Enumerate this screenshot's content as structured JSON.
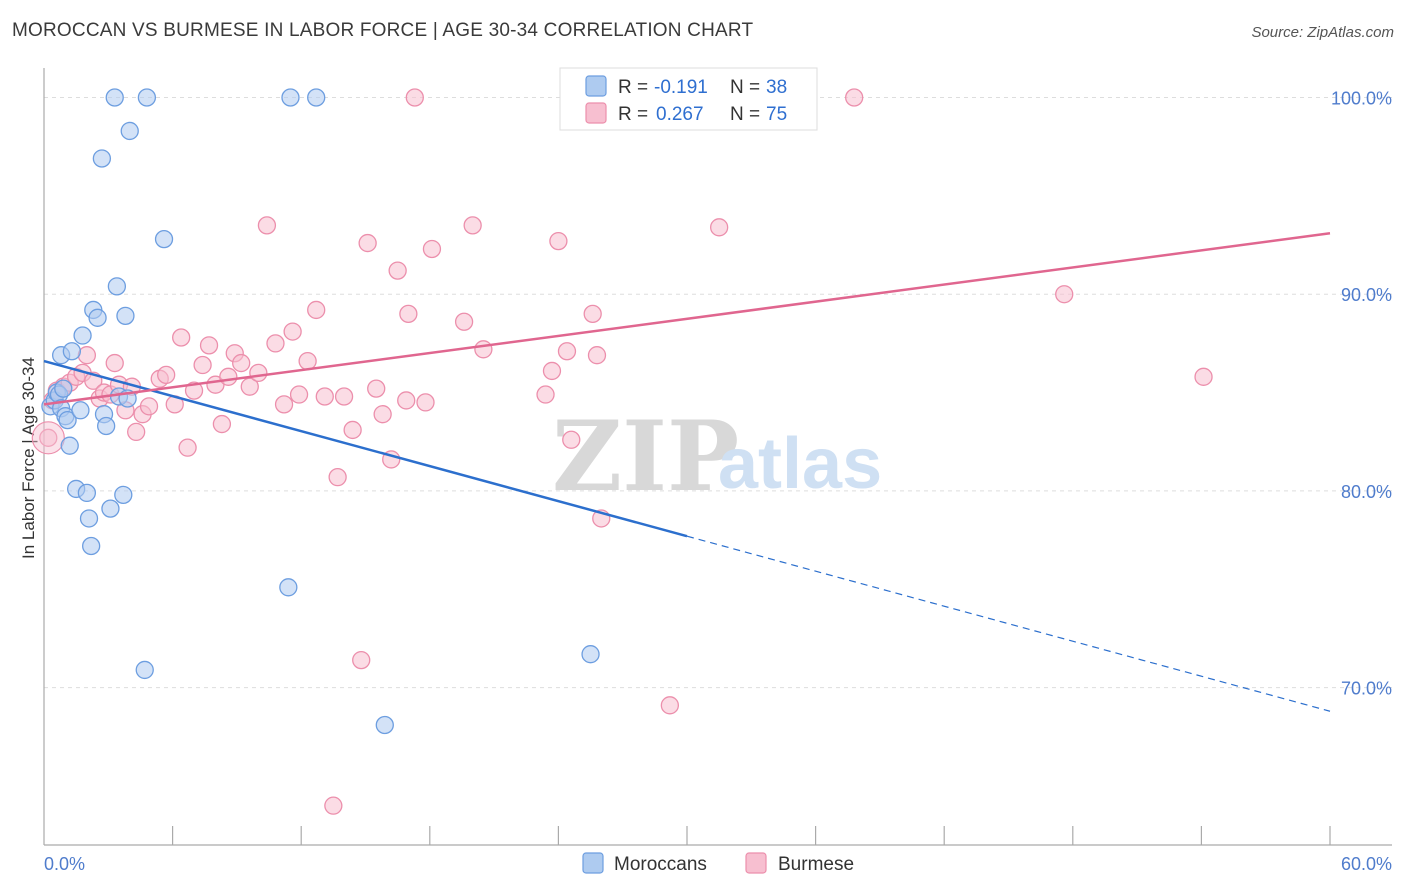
{
  "title": "MOROCCAN VS BURMESE IN LABOR FORCE | AGE 30-34 CORRELATION CHART",
  "source": "Source: ZipAtlas.com",
  "watermark": {
    "zip": "ZIP",
    "atlas": "atlas"
  },
  "colors": {
    "moroccan_fill": "#aecbf0",
    "moroccan_stroke": "#6d9ee0",
    "moroccan_line": "#2c6fcd",
    "burmese_fill": "#f7bfd0",
    "burmese_stroke": "#ec8fac",
    "burmese_line": "#e0668f",
    "axis_text": "#4f7ccc",
    "grid": "#dddddd"
  },
  "legend": {
    "rows": [
      {
        "r_label": "R =",
        "r_value": "-0.191",
        "n_label": "N =",
        "n_value": "38"
      },
      {
        "r_label": "R =",
        "r_value": "0.267",
        "n_label": "N =",
        "n_value": "75"
      }
    ],
    "bottom": [
      "Moroccans",
      "Burmese"
    ]
  },
  "chart_data": {
    "type": "scatter",
    "title": "MOROCCAN VS BURMESE IN LABOR FORCE | AGE 30-34 CORRELATION CHART",
    "xlabel": "",
    "ylabel": "In Labor Force | Age 30-34",
    "xlim": [
      0,
      60
    ],
    "ylim": [
      62.0,
      101.5
    ],
    "x_tick_labels": [
      "0.0%",
      "60.0%"
    ],
    "y_ticks": [
      70,
      80,
      90,
      100
    ],
    "y_tick_labels": [
      "70.0%",
      "80.0%",
      "90.0%",
      "100.0%"
    ],
    "series": [
      {
        "name": "Moroccans",
        "r": -0.191,
        "n": 38,
        "trend": {
          "x_start": 0,
          "y_start": 86.6,
          "x_solid_end": 30,
          "y_solid_end": 77.7,
          "x_end": 60,
          "y_end": 68.8
        },
        "points": [
          [
            0.3,
            84.3
          ],
          [
            0.5,
            84.6
          ],
          [
            0.6,
            85.0
          ],
          [
            0.7,
            84.9
          ],
          [
            0.8,
            84.2
          ],
          [
            0.9,
            85.2
          ],
          [
            0.8,
            86.9
          ],
          [
            1.0,
            83.8
          ],
          [
            1.1,
            83.6
          ],
          [
            1.2,
            82.3
          ],
          [
            1.3,
            87.1
          ],
          [
            1.5,
            80.1
          ],
          [
            1.7,
            84.1
          ],
          [
            1.8,
            87.9
          ],
          [
            2.0,
            79.9
          ],
          [
            2.1,
            78.6
          ],
          [
            2.2,
            77.2
          ],
          [
            2.3,
            89.2
          ],
          [
            2.5,
            88.8
          ],
          [
            2.7,
            96.9
          ],
          [
            2.8,
            83.9
          ],
          [
            2.9,
            83.3
          ],
          [
            3.1,
            79.1
          ],
          [
            3.3,
            100.0
          ],
          [
            3.4,
            90.4
          ],
          [
            3.5,
            84.8
          ],
          [
            3.7,
            79.8
          ],
          [
            3.8,
            88.9
          ],
          [
            3.9,
            84.7
          ],
          [
            4.0,
            98.3
          ],
          [
            4.7,
            70.9
          ],
          [
            4.8,
            100.0
          ],
          [
            5.6,
            92.8
          ],
          [
            11.4,
            75.1
          ],
          [
            11.5,
            100.0
          ],
          [
            12.7,
            100.0
          ],
          [
            15.9,
            68.1
          ],
          [
            25.5,
            71.7
          ]
        ]
      },
      {
        "name": "Burmese",
        "r": 0.267,
        "n": 75,
        "trend": {
          "x_start": 0,
          "y_start": 84.4,
          "x_end": 60,
          "y_end": 93.1
        },
        "points": [
          [
            0.2,
            82.7
          ],
          [
            0.6,
            85.1
          ],
          [
            0.9,
            85.3
          ],
          [
            1.2,
            85.5
          ],
          [
            1.5,
            85.8
          ],
          [
            1.8,
            86.0
          ],
          [
            2.0,
            86.9
          ],
          [
            2.3,
            85.6
          ],
          [
            2.6,
            84.7
          ],
          [
            2.8,
            85.0
          ],
          [
            3.1,
            84.9
          ],
          [
            3.3,
            86.5
          ],
          [
            3.5,
            85.4
          ],
          [
            3.8,
            84.1
          ],
          [
            4.1,
            85.3
          ],
          [
            4.3,
            83.0
          ],
          [
            4.6,
            83.9
          ],
          [
            4.9,
            84.3
          ],
          [
            5.4,
            85.7
          ],
          [
            5.7,
            85.9
          ],
          [
            6.1,
            84.4
          ],
          [
            6.4,
            87.8
          ],
          [
            6.7,
            82.2
          ],
          [
            7.0,
            85.1
          ],
          [
            7.4,
            86.4
          ],
          [
            7.7,
            87.4
          ],
          [
            8.0,
            85.4
          ],
          [
            8.3,
            83.4
          ],
          [
            8.6,
            85.8
          ],
          [
            8.9,
            87.0
          ],
          [
            9.2,
            86.5
          ],
          [
            9.6,
            85.3
          ],
          [
            10.0,
            86.0
          ],
          [
            10.4,
            93.5
          ],
          [
            10.8,
            87.5
          ],
          [
            11.2,
            84.4
          ],
          [
            11.6,
            88.1
          ],
          [
            11.9,
            84.9
          ],
          [
            12.3,
            86.6
          ],
          [
            12.7,
            89.2
          ],
          [
            13.1,
            84.8
          ],
          [
            13.5,
            64.0
          ],
          [
            13.7,
            80.7
          ],
          [
            14.0,
            84.8
          ],
          [
            14.4,
            83.1
          ],
          [
            14.8,
            71.4
          ],
          [
            15.1,
            92.6
          ],
          [
            15.5,
            85.2
          ],
          [
            15.8,
            83.9
          ],
          [
            16.2,
            81.6
          ],
          [
            16.5,
            91.2
          ],
          [
            16.9,
            84.6
          ],
          [
            17.3,
            100.0
          ],
          [
            17.0,
            89.0
          ],
          [
            17.8,
            84.5
          ],
          [
            18.1,
            92.3
          ],
          [
            19.6,
            88.6
          ],
          [
            20.0,
            93.5
          ],
          [
            20.5,
            87.2
          ],
          [
            23.4,
            84.9
          ],
          [
            23.7,
            86.1
          ],
          [
            24.0,
            92.7
          ],
          [
            24.4,
            87.1
          ],
          [
            24.6,
            82.6
          ],
          [
            25.0,
            100.0
          ],
          [
            25.6,
            89.0
          ],
          [
            25.8,
            86.9
          ],
          [
            26.0,
            78.6
          ],
          [
            29.2,
            69.1
          ],
          [
            31.0,
            100.0
          ],
          [
            31.5,
            93.4
          ],
          [
            37.8,
            100.0
          ],
          [
            47.6,
            90.0
          ],
          [
            54.1,
            85.8
          ],
          [
            0.4,
            84.6
          ]
        ]
      }
    ]
  }
}
